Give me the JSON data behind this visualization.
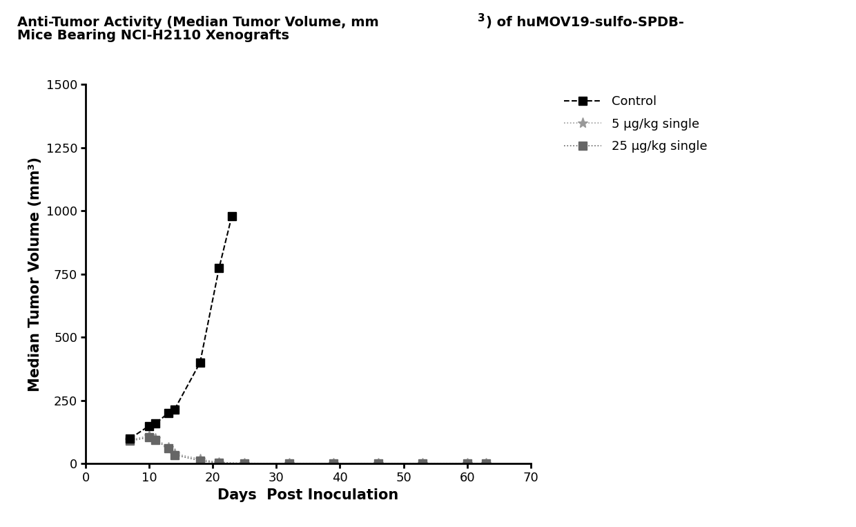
{
  "title_line1": "Anti-Tumor Activity (Median Tumor Volume, mm",
  "title_superscript": "3",
  "title_line1_suffix": ") of huMOV19-sulfo-SPDB-",
  "title_line2": "Mice Bearing NCI-H2110 Xenografts",
  "xlabel": "Days  Post Inoculation",
  "ylabel": "Median Tumor Volume (mm³)",
  "xlim": [
    0,
    70
  ],
  "ylim": [
    0,
    1500
  ],
  "xticks": [
    0,
    10,
    20,
    30,
    40,
    50,
    60,
    70
  ],
  "yticks": [
    0,
    250,
    500,
    750,
    1000,
    1250,
    1500
  ],
  "series": [
    {
      "label": "Control",
      "x": [
        7,
        10,
        11,
        13,
        14,
        18,
        21,
        23
      ],
      "y": [
        100,
        150,
        160,
        200,
        215,
        400,
        775,
        980
      ],
      "color": "#000000",
      "linestyle": "--",
      "marker": "s",
      "markersize": 8,
      "linewidth": 1.5,
      "zorder": 3
    },
    {
      "label": "5 μg/kg single",
      "x": [
        7,
        10,
        11,
        13,
        14,
        18,
        21,
        25,
        32,
        39,
        46,
        53,
        60,
        63
      ],
      "y": [
        95,
        110,
        100,
        65,
        40,
        18,
        5,
        2,
        1,
        1,
        1,
        1,
        1,
        1
      ],
      "color": "#999999",
      "linestyle": ":",
      "marker": "*",
      "markersize": 11,
      "linewidth": 1.2,
      "zorder": 2
    },
    {
      "label": "25 μg/kg single",
      "x": [
        7,
        10,
        11,
        13,
        14,
        18,
        21,
        25,
        32,
        39,
        46,
        53,
        60,
        63
      ],
      "y": [
        90,
        105,
        95,
        60,
        35,
        12,
        3,
        1,
        1,
        1,
        1,
        1,
        1,
        1
      ],
      "color": "#666666",
      "linestyle": ":",
      "marker": "s",
      "markersize": 8,
      "linewidth": 1.2,
      "zorder": 2
    }
  ],
  "background_color": "#ffffff",
  "title_fontsize": 14,
  "axis_label_fontsize": 15,
  "tick_fontsize": 13,
  "legend_fontsize": 13
}
